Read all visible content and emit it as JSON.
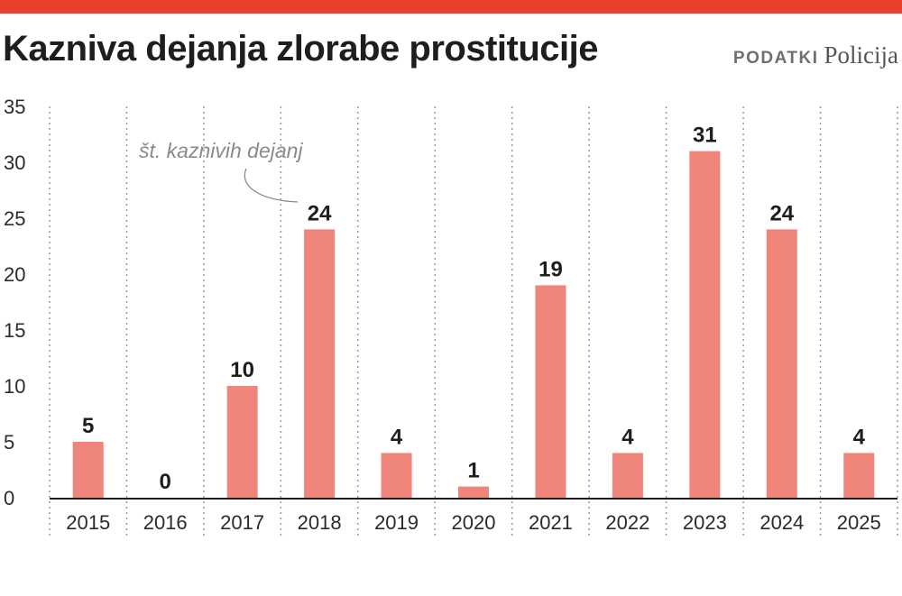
{
  "header": {
    "title": "Kazniva dejanja zlorabe prostitucije",
    "source_label": "PODATKI",
    "source_name": "Policija"
  },
  "chart_data": {
    "type": "bar",
    "categories": [
      "2015",
      "2016",
      "2017",
      "2018",
      "2019",
      "2020",
      "2021",
      "2022",
      "2023",
      "2024",
      "2025"
    ],
    "values": [
      5,
      0,
      10,
      24,
      4,
      1,
      19,
      4,
      31,
      24,
      4
    ],
    "ylim": [
      0,
      35
    ],
    "yticks": [
      0,
      5,
      10,
      15,
      20,
      25,
      30,
      35
    ],
    "grid": "vertical dotted separators between categories",
    "annotation": "št. kaznivih dejanj",
    "colors": {
      "bar": "#f0857c",
      "accent": "#e8402a",
      "text": "#1e1e1e"
    }
  }
}
